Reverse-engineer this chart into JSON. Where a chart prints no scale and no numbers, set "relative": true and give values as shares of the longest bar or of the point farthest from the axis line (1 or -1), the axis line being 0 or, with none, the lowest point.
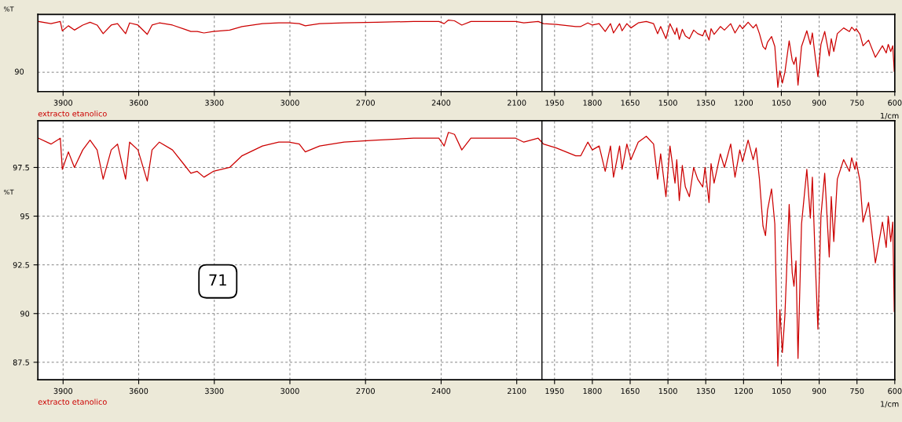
{
  "chart_data": [
    {
      "type": "line",
      "relative": true,
      "xlabel": "1/cm",
      "ylabel": "%T",
      "xlim": [
        4000,
        600
      ],
      "xticks": [
        3900,
        3600,
        3300,
        3000,
        2700,
        2400,
        2100,
        1950,
        1800,
        1650,
        1500,
        1350,
        1200,
        1050,
        900,
        750,
        600
      ],
      "grid": "x",
      "ref_lines": [
        {
          "axis": "x",
          "value": 2000,
          "color": "#000000",
          "line_style": "solid"
        },
        {
          "axis": "y",
          "value": 0.27,
          "color": "#808080",
          "line_style": "dashed"
        }
      ],
      "annotations": [
        "90"
      ],
      "series": [
        {
          "name": "extracto etanolico",
          "color": "#cc0000",
          "x": [
            3997,
            3948,
            3911,
            3903,
            3879,
            3855,
            3822,
            3793,
            3765,
            3741,
            3709,
            3684,
            3652,
            3636,
            3603,
            3566,
            3547,
            3518,
            3466,
            3417,
            3393,
            3368,
            3341,
            3304,
            3239,
            3190,
            3109,
            3044,
            3004,
            2963,
            2939,
            2882,
            2785,
            2655,
            2509,
            2409,
            2388,
            2371,
            2347,
            2318,
            2282,
            2201,
            2104,
            2072,
            2015,
            1994,
            1943,
            1866,
            1846,
            1818,
            1800,
            1773,
            1749,
            1728,
            1716,
            1692,
            1682,
            1663,
            1647,
            1618,
            1586,
            1557,
            1541,
            1529,
            1508,
            1492,
            1472,
            1465,
            1455,
            1443,
            1431,
            1415,
            1398,
            1382,
            1362,
            1353,
            1337,
            1329,
            1317,
            1292,
            1276,
            1251,
            1234,
            1215,
            1204,
            1182,
            1162,
            1150,
            1137,
            1123,
            1113,
            1105,
            1089,
            1076,
            1064,
            1056,
            1046,
            1036,
            1019,
            1007,
            1000,
            992,
            984,
            970,
            949,
            935,
            927,
            915,
            905,
            893,
            878,
            860,
            852,
            842,
            828,
            803,
            780,
            771,
            758,
            753,
            738,
            726,
            704,
            677,
            649,
            634,
            626,
            616,
            608,
            602,
            600
          ],
          "values": [
            0.98,
            0.95,
            0.98,
            0.85,
            0.92,
            0.86,
            0.93,
            0.97,
            0.93,
            0.81,
            0.93,
            0.95,
            0.81,
            0.96,
            0.93,
            0.8,
            0.93,
            0.96,
            0.93,
            0.87,
            0.84,
            0.84,
            0.82,
            0.84,
            0.86,
            0.91,
            0.95,
            0.96,
            0.96,
            0.95,
            0.92,
            0.95,
            0.96,
            0.97,
            0.98,
            0.98,
            0.95,
            1.0,
            0.99,
            0.93,
            0.98,
            0.98,
            0.98,
            0.96,
            0.98,
            0.95,
            0.94,
            0.91,
            0.91,
            0.96,
            0.93,
            0.95,
            0.84,
            0.95,
            0.82,
            0.95,
            0.85,
            0.95,
            0.89,
            0.96,
            0.98,
            0.95,
            0.81,
            0.91,
            0.74,
            0.95,
            0.8,
            0.89,
            0.73,
            0.87,
            0.78,
            0.74,
            0.86,
            0.81,
            0.78,
            0.86,
            0.72,
            0.88,
            0.8,
            0.91,
            0.86,
            0.95,
            0.82,
            0.93,
            0.88,
            0.97,
            0.89,
            0.94,
            0.81,
            0.63,
            0.59,
            0.69,
            0.77,
            0.63,
            0.06,
            0.29,
            0.12,
            0.27,
            0.71,
            0.44,
            0.38,
            0.48,
            0.09,
            0.63,
            0.85,
            0.66,
            0.82,
            0.47,
            0.21,
            0.66,
            0.84,
            0.5,
            0.74,
            0.56,
            0.81,
            0.89,
            0.84,
            0.9,
            0.85,
            0.88,
            0.8,
            0.64,
            0.72,
            0.48,
            0.64,
            0.54,
            0.66,
            0.56,
            0.64,
            0.28,
            0.34
          ]
        }
      ]
    },
    {
      "type": "line",
      "xlabel": "1/cm",
      "ylabel": "%T",
      "xlim": [
        4000,
        600
      ],
      "xticks": [
        3900,
        3600,
        3300,
        3000,
        2700,
        2400,
        2100,
        1950,
        1800,
        1650,
        1500,
        1350,
        1200,
        1050,
        900,
        750,
        600
      ],
      "ylim": [
        86.6,
        99.9
      ],
      "yticks": [
        87.5,
        90,
        92.5,
        95,
        97.5
      ],
      "grid": true,
      "ref_lines": [
        {
          "axis": "x",
          "value": 2000,
          "color": "#000000",
          "line_style": "solid"
        }
      ],
      "annotations": [
        "71"
      ],
      "series": [
        {
          "name": "extracto etanolico",
          "color": "#cc0000",
          "x": [
            3997,
            3948,
            3911,
            3903,
            3879,
            3855,
            3822,
            3793,
            3765,
            3741,
            3709,
            3684,
            3652,
            3636,
            3603,
            3566,
            3547,
            3518,
            3466,
            3417,
            3393,
            3368,
            3341,
            3304,
            3239,
            3190,
            3109,
            3044,
            3004,
            2963,
            2939,
            2882,
            2785,
            2655,
            2509,
            2409,
            2388,
            2371,
            2347,
            2318,
            2282,
            2201,
            2104,
            2072,
            2015,
            1994,
            1943,
            1866,
            1846,
            1818,
            1800,
            1773,
            1749,
            1728,
            1716,
            1692,
            1682,
            1663,
            1647,
            1618,
            1586,
            1557,
            1541,
            1529,
            1508,
            1492,
            1472,
            1465,
            1455,
            1443,
            1431,
            1415,
            1398,
            1382,
            1362,
            1353,
            1337,
            1329,
            1317,
            1292,
            1276,
            1251,
            1234,
            1215,
            1204,
            1182,
            1162,
            1150,
            1137,
            1123,
            1113,
            1105,
            1089,
            1076,
            1064,
            1056,
            1046,
            1036,
            1019,
            1007,
            1000,
            992,
            984,
            970,
            949,
            935,
            927,
            915,
            905,
            893,
            878,
            860,
            852,
            842,
            828,
            803,
            780,
            771,
            758,
            753,
            738,
            726,
            704,
            677,
            649,
            634,
            626,
            616,
            608,
            602,
            600
          ],
          "values": [
            99.0,
            98.7,
            99.0,
            97.4,
            98.3,
            97.5,
            98.4,
            98.9,
            98.4,
            96.9,
            98.4,
            98.7,
            96.9,
            98.8,
            98.4,
            96.8,
            98.4,
            98.8,
            98.4,
            97.6,
            97.2,
            97.3,
            97.0,
            97.3,
            97.5,
            98.1,
            98.6,
            98.8,
            98.8,
            98.7,
            98.3,
            98.6,
            98.8,
            98.9,
            99.0,
            99.0,
            98.6,
            99.3,
            99.2,
            98.4,
            99.0,
            99.0,
            99.0,
            98.8,
            99.0,
            98.7,
            98.5,
            98.1,
            98.1,
            98.8,
            98.4,
            98.6,
            97.3,
            98.6,
            97.0,
            98.6,
            97.4,
            98.7,
            97.9,
            98.8,
            99.1,
            98.7,
            96.9,
            98.2,
            96.0,
            98.6,
            96.7,
            97.9,
            95.8,
            97.6,
            96.5,
            96.0,
            97.5,
            96.9,
            96.5,
            97.5,
            95.7,
            97.7,
            96.7,
            98.2,
            97.5,
            98.7,
            97.0,
            98.4,
            97.8,
            98.9,
            97.9,
            98.5,
            96.9,
            94.5,
            94.0,
            95.3,
            96.4,
            94.6,
            87.3,
            90.2,
            88.0,
            89.9,
            95.6,
            92.1,
            91.4,
            92.7,
            87.7,
            94.6,
            97.4,
            94.9,
            97.0,
            92.5,
            89.2,
            95.0,
            97.2,
            92.9,
            96.0,
            93.7,
            96.9,
            97.9,
            97.3,
            98.0,
            97.4,
            97.8,
            96.8,
            94.7,
            95.7,
            92.6,
            94.7,
            93.4,
            95.0,
            93.7,
            94.7,
            90.1,
            90.8
          ]
        }
      ]
    }
  ]
}
